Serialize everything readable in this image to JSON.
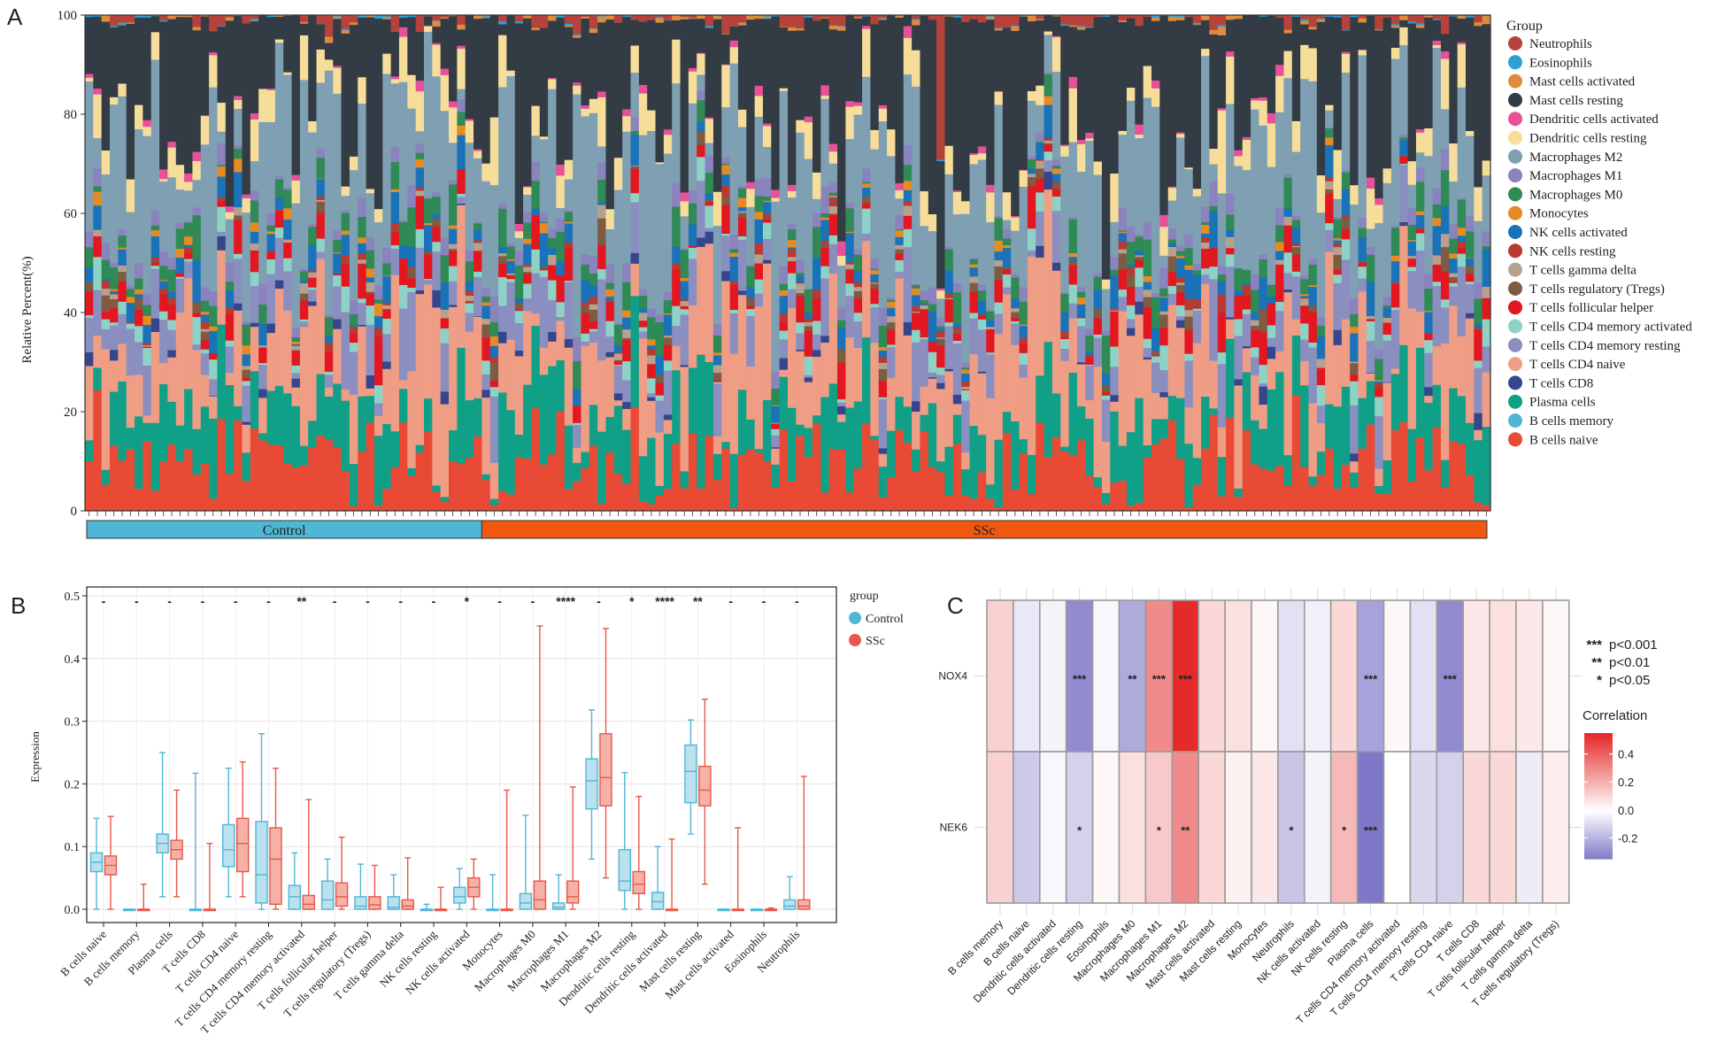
{
  "chart_data": [
    {
      "panel": "A",
      "type": "bar",
      "subtype": "stacked-100-percent",
      "panel_label": "A",
      "ylabel": "Relative Percent(%)",
      "ylim": [
        0,
        100
      ],
      "y_ticks": [
        "0",
        "20",
        "40",
        "60",
        "80",
        "100"
      ],
      "legend_title": "Group",
      "legend": [
        {
          "name": "Neutrophils",
          "color": "#b5433b"
        },
        {
          "name": "Eosinophils",
          "color": "#2aa2d6"
        },
        {
          "name": "Mast cells activated",
          "color": "#e08a3c"
        },
        {
          "name": "Mast cells resting",
          "color": "#333c44"
        },
        {
          "name": "Dendritic cells activated",
          "color": "#e6519a"
        },
        {
          "name": "Dendritic cells resting",
          "color": "#f7dd9a"
        },
        {
          "name": "Macrophages M2",
          "color": "#7f9fb3"
        },
        {
          "name": "Macrophages M1",
          "color": "#8a83bd"
        },
        {
          "name": "Macrophages M0",
          "color": "#2f8a55"
        },
        {
          "name": "Monocytes",
          "color": "#e58b24"
        },
        {
          "name": "NK cells activated",
          "color": "#1a73b8"
        },
        {
          "name": "NK cells resting",
          "color": "#b83a32"
        },
        {
          "name": "T cells gamma delta",
          "color": "#b7a18e"
        },
        {
          "name": "T cells regulatory (Tregs)",
          "color": "#7e5b43"
        },
        {
          "name": "T cells follicular helper",
          "color": "#e3171f"
        },
        {
          "name": "T cells CD4 memory activated",
          "color": "#8ed2c6"
        },
        {
          "name": "T cells CD4 memory resting",
          "color": "#8a8fc0"
        },
        {
          "name": "T cells CD4 naive",
          "color": "#ef9d84"
        },
        {
          "name": "T cells CD8",
          "color": "#35468c"
        },
        {
          "name": "Plasma cells",
          "color": "#10a088"
        },
        {
          "name": "B cells memory",
          "color": "#4fb6d6"
        },
        {
          "name": "B cells naive",
          "color": "#e84a35"
        }
      ],
      "stack_order_bottom_to_top": [
        "B cells naive",
        "Plasma cells",
        "T cells CD4 naive",
        "T cells CD8",
        "T cells CD4 memory resting",
        "T cells CD4 memory activated",
        "T cells follicular helper",
        "T cells regulatory (Tregs)",
        "T cells gamma delta",
        "NK cells resting",
        "NK cells activated",
        "Monocytes",
        "Macrophages M0",
        "Macrophages M1",
        "Macrophages M2",
        "Dendritic cells resting",
        "Dendritic cells activated",
        "Mast cells resting",
        "Mast cells activated",
        "Eosinophils",
        "Neutrophils"
      ],
      "sample_groups": [
        {
          "name": "Control",
          "n_samples": 48,
          "color": "#4fb6d6"
        },
        {
          "name": "SSc",
          "n_samples": 122,
          "color": "#f0580f"
        }
      ],
      "mean_composition_percent": {
        "B cells naive": 9,
        "Plasma cells": 9,
        "T cells CD4 naive": 14,
        "T cells CD8": 1.5,
        "T cells CD4 memory resting": 6,
        "T cells CD4 memory activated": 2,
        "T cells follicular helper": 3,
        "T cells regulatory (Tregs)": 1.5,
        "T cells gamma delta": 1,
        "NK cells resting": 1,
        "NK cells activated": 3,
        "Monocytes": 1,
        "Macrophages M0": 3,
        "Macrophages M1": 2,
        "Macrophages M2": 20,
        "Dendritic cells resting": 4,
        "Dendritic cells activated": 1,
        "Mast cells resting": 20,
        "Mast cells activated": 0.5,
        "Eosinophils": 0.2,
        "Neutrophils": 1.5
      },
      "note": "Individual sample stacks approximated"
    },
    {
      "panel": "B",
      "type": "box",
      "panel_label": "B",
      "ylabel": "Expression",
      "ylim": [
        0,
        0.5
      ],
      "y_ticks": [
        "0.0",
        "0.1",
        "0.2",
        "0.3",
        "0.4",
        "0.5"
      ],
      "legend_title": "group",
      "series": [
        {
          "name": "Control",
          "color": "#4fb6d6",
          "fill": "#b9e1ee"
        },
        {
          "name": "SSc",
          "color": "#e8574a",
          "fill": "#f6b1a7"
        }
      ],
      "categories": [
        "B cells naive",
        "B cells memory",
        "Plasma cells",
        "T cells CD8",
        "T cells CD4 naive",
        "T cells CD4 memory resting",
        "T cells CD4 memory activated",
        "T cells follicular helper",
        "T cells regulatory (Tregs)",
        "T cells gamma delta",
        "NK cells resting",
        "NK cells activated",
        "Monocytes",
        "Macrophages M0",
        "Macrophages M1",
        "Macrophages M2",
        "Dendritic cells resting",
        "Dendritic cells activated",
        "Mast cells resting",
        "Mast cells activated",
        "Eosinophils",
        "Neutrophils"
      ],
      "significance": [
        "-",
        "-",
        "-",
        "-",
        "-",
        "-",
        "**",
        "-",
        "-",
        "-",
        "-",
        "*",
        "-",
        "-",
        "****",
        "-",
        "*",
        "****",
        "**",
        "-",
        "-",
        "-"
      ],
      "boxes": [
        {
          "control": [
            0,
            0.06,
            0.075,
            0.09,
            0.145
          ],
          "ssc": [
            0,
            0.055,
            0.07,
            0.085,
            0.148
          ]
        },
        {
          "control": [
            0,
            0,
            0,
            0,
            0
          ],
          "ssc": [
            0,
            0,
            0,
            0,
            0.04
          ]
        },
        {
          "control": [
            0.02,
            0.09,
            0.105,
            0.12,
            0.25
          ],
          "ssc": [
            0.02,
            0.08,
            0.095,
            0.11,
            0.19
          ]
        },
        {
          "control": [
            0,
            0,
            0,
            0,
            0.217
          ],
          "ssc": [
            0,
            0,
            0,
            0,
            0.105
          ]
        },
        {
          "control": [
            0.02,
            0.068,
            0.095,
            0.135,
            0.225
          ],
          "ssc": [
            0.02,
            0.06,
            0.105,
            0.145,
            0.235
          ]
        },
        {
          "control": [
            0,
            0.01,
            0.055,
            0.14,
            0.28
          ],
          "ssc": [
            0,
            0.008,
            0.08,
            0.13,
            0.225
          ]
        },
        {
          "control": [
            0,
            0,
            0.02,
            0.038,
            0.09
          ],
          "ssc": [
            0,
            0,
            0.008,
            0.022,
            0.175
          ]
        },
        {
          "control": [
            0,
            0,
            0.015,
            0.045,
            0.08
          ],
          "ssc": [
            0,
            0.005,
            0.02,
            0.042,
            0.115
          ]
        },
        {
          "control": [
            0,
            0,
            0.005,
            0.02,
            0.072
          ],
          "ssc": [
            0,
            0,
            0.007,
            0.02,
            0.07
          ]
        },
        {
          "control": [
            0,
            0,
            0.003,
            0.02,
            0.055
          ],
          "ssc": [
            0,
            0,
            0.005,
            0.015,
            0.082
          ]
        },
        {
          "control": [
            0,
            0,
            0,
            0,
            0.008
          ],
          "ssc": [
            0,
            0,
            0,
            0,
            0.035
          ]
        },
        {
          "control": [
            0,
            0.01,
            0.02,
            0.035,
            0.065
          ],
          "ssc": [
            0,
            0.02,
            0.035,
            0.05,
            0.08
          ]
        },
        {
          "control": [
            0,
            0,
            0,
            0,
            0.055
          ],
          "ssc": [
            0,
            0,
            0,
            0,
            0.19
          ]
        },
        {
          "control": [
            0,
            0,
            0.01,
            0.025,
            0.15
          ],
          "ssc": [
            0,
            0,
            0.015,
            0.045,
            0.452
          ]
        },
        {
          "control": [
            0,
            0,
            0.003,
            0.01,
            0.055
          ],
          "ssc": [
            0,
            0.01,
            0.02,
            0.045,
            0.195
          ]
        },
        {
          "control": [
            0.08,
            0.16,
            0.205,
            0.24,
            0.318
          ],
          "ssc": [
            0.05,
            0.165,
            0.21,
            0.28,
            0.448
          ]
        },
        {
          "control": [
            0,
            0.03,
            0.045,
            0.095,
            0.218
          ],
          "ssc": [
            0,
            0.025,
            0.04,
            0.06,
            0.18
          ]
        },
        {
          "control": [
            0,
            0,
            0.012,
            0.027,
            0.1
          ],
          "ssc": [
            0,
            0,
            0,
            0,
            0.112
          ]
        },
        {
          "control": [
            0.12,
            0.17,
            0.22,
            0.262,
            0.302
          ],
          "ssc": [
            0.04,
            0.165,
            0.19,
            0.228,
            0.335
          ]
        },
        {
          "control": [
            0,
            0,
            0,
            0,
            0
          ],
          "ssc": [
            0,
            0,
            0,
            0,
            0.13
          ]
        },
        {
          "control": [
            0,
            0,
            0,
            0,
            0
          ],
          "ssc": [
            0,
            0,
            0,
            0,
            0.002
          ]
        },
        {
          "control": [
            0,
            0,
            0.005,
            0.015,
            0.052
          ],
          "ssc": [
            0,
            0,
            0.005,
            0.015,
            0.212
          ]
        }
      ]
    },
    {
      "panel": "C",
      "type": "heatmap",
      "panel_label": "C",
      "rows": [
        "NOX4",
        "NEK6"
      ],
      "columns": [
        "B cells memory",
        "B cells naive",
        "Dendritic cells activated",
        "Dendritic cells resting",
        "Eosinophils",
        "Macrophages M0",
        "Macrophages M1",
        "Macrophages M2",
        "Mast cells activated",
        "Mast cells resting",
        "Monocytes",
        "Neutrophils",
        "NK cells activated",
        "NK cells resting",
        "Plasma cells",
        "T cells CD4 memory activated",
        "T cells CD4 memory resting",
        "T cells CD4 naive",
        "T cells CD8",
        "T cells follicular helper",
        "T cells gamma delta",
        "T cells regulatory (Tregs)"
      ],
      "values": [
        [
          0.12,
          -0.06,
          -0.03,
          -0.3,
          -0.02,
          -0.22,
          0.3,
          0.55,
          0.1,
          0.08,
          0.02,
          -0.08,
          -0.04,
          0.1,
          -0.24,
          0.02,
          -0.08,
          -0.3,
          0.06,
          0.08,
          0.06,
          0.02
        ],
        [
          0.12,
          -0.14,
          -0.02,
          -0.12,
          0.02,
          0.08,
          0.14,
          0.3,
          0.1,
          0.04,
          0.06,
          -0.15,
          -0.03,
          0.18,
          -0.35,
          0.0,
          -0.1,
          -0.12,
          0.1,
          0.1,
          -0.05,
          0.05
        ]
      ],
      "stars": [
        [
          "",
          "",
          "",
          "***",
          "",
          "**",
          "***",
          "***",
          "",
          "",
          "",
          "",
          "",
          "",
          "***",
          "",
          "",
          "***",
          "",
          "",
          "",
          ""
        ],
        [
          "",
          "",
          "",
          "*",
          "",
          "",
          "*",
          "**",
          "",
          "",
          "",
          "*",
          "",
          "*",
          "***",
          "",
          "",
          "",
          "",
          "",
          "",
          ""
        ]
      ],
      "significance_legend": [
        {
          "stars": "***",
          "label": "p<0.001"
        },
        {
          "stars": "**",
          "label": "p<0.01"
        },
        {
          "stars": "*",
          "label": "p<0.05"
        }
      ],
      "colorbar_title": "Correlation",
      "colorbar_ticks": [
        "0.4",
        "0.2",
        "0.0",
        "-0.2"
      ],
      "colorbar_range": [
        -0.35,
        0.55
      ],
      "colors": {
        "low": "#7f78c8",
        "mid": "#ffffff",
        "high": "#e52a2a"
      }
    }
  ]
}
